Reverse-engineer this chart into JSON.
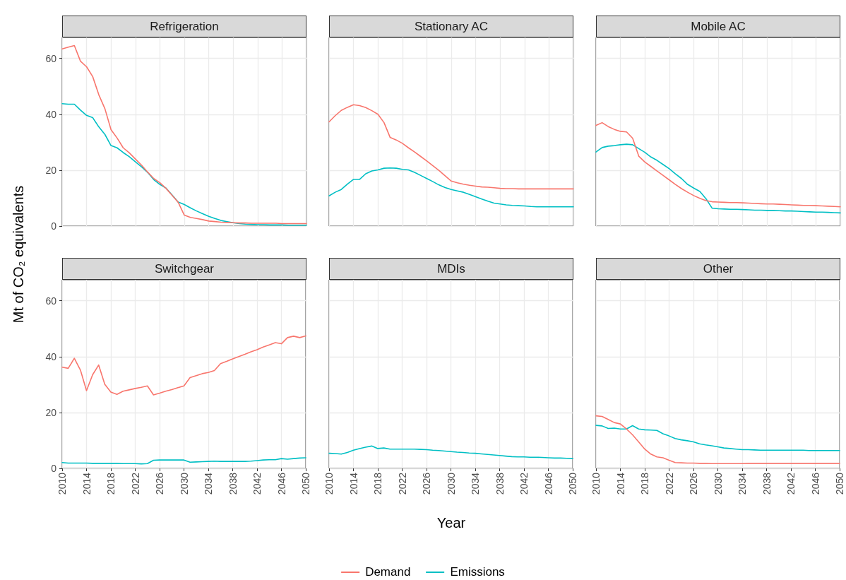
{
  "chart_data": [
    {
      "type": "line",
      "title": "Refrigeration",
      "ylabel": "Mt of CO₂ equivalents",
      "legend": "bottom",
      "grid": true,
      "tick_labels": "y",
      "xlim": [
        2010,
        2050
      ],
      "ylim": [
        0,
        67.5
      ],
      "xticks": [
        2010,
        2014,
        2018,
        2022,
        2026,
        2030,
        2034,
        2038,
        2042,
        2046,
        2050
      ],
      "yticks": [
        0,
        20,
        40,
        60
      ],
      "x": [
        2010,
        2011,
        2012,
        2013,
        2014,
        2015,
        2016,
        2017,
        2018,
        2019,
        2020,
        2021,
        2022,
        2023,
        2024,
        2025,
        2026,
        2027,
        2028,
        2029,
        2030,
        2031,
        2032,
        2033,
        2034,
        2035,
        2036,
        2037,
        2038,
        2039,
        2040,
        2041,
        2042,
        2043,
        2044,
        2045,
        2046,
        2047,
        2048,
        2049,
        2050
      ],
      "series": [
        {
          "name": "Demand",
          "color": "#f8766d",
          "values": [
            63.4,
            64.0,
            64.6,
            59.0,
            57.0,
            53.5,
            47.0,
            42.0,
            34.5,
            31.5,
            28.0,
            26.2,
            24.0,
            21.8,
            19.3,
            17.0,
            15.5,
            13.5,
            11.0,
            8.5,
            3.9,
            3.1,
            2.7,
            2.3,
            1.8,
            1.6,
            1.4,
            1.3,
            1.2,
            1.1,
            1.1,
            1.0,
            1.0,
            1.0,
            1.0,
            1.0,
            0.9,
            0.9,
            0.9,
            0.9,
            0.9
          ]
        },
        {
          "name": "Emissions",
          "color": "#00bfc4",
          "values": [
            43.8,
            43.6,
            43.6,
            41.5,
            39.6,
            38.8,
            35.5,
            32.8,
            28.8,
            28.0,
            26.3,
            24.8,
            23.0,
            21.2,
            19.2,
            16.6,
            14.9,
            13.6,
            11.1,
            8.6,
            7.7,
            6.5,
            5.4,
            4.4,
            3.5,
            2.7,
            2.0,
            1.6,
            1.2,
            0.9,
            0.7,
            0.6,
            0.5,
            0.5,
            0.4,
            0.4,
            0.4,
            0.3,
            0.3,
            0.3,
            0.3
          ]
        }
      ]
    },
    {
      "type": "line",
      "title": "Stationary AC",
      "grid": true,
      "tick_labels": false,
      "xlim": [
        2010,
        2050
      ],
      "ylim": [
        0,
        67.5
      ],
      "xticks": [
        2010,
        2014,
        2018,
        2022,
        2026,
        2030,
        2034,
        2038,
        2042,
        2046,
        2050
      ],
      "yticks": [
        0,
        20,
        40,
        60
      ],
      "x": [
        2010,
        2011,
        2012,
        2013,
        2014,
        2015,
        2016,
        2017,
        2018,
        2019,
        2020,
        2021,
        2022,
        2023,
        2024,
        2025,
        2026,
        2027,
        2028,
        2029,
        2030,
        2031,
        2032,
        2033,
        2034,
        2035,
        2036,
        2037,
        2038,
        2039,
        2040,
        2041,
        2042,
        2043,
        2044,
        2045,
        2046,
        2047,
        2048,
        2049,
        2050
      ],
      "series": [
        {
          "name": "Demand",
          "color": "#f8766d",
          "values": [
            37.3,
            39.5,
            41.4,
            42.5,
            43.4,
            43.1,
            42.4,
            41.3,
            40.0,
            37.0,
            31.7,
            30.8,
            29.6,
            28.0,
            26.5,
            24.9,
            23.3,
            21.6,
            19.9,
            18.0,
            16.1,
            15.5,
            15.0,
            14.6,
            14.3,
            14.0,
            13.9,
            13.7,
            13.5,
            13.4,
            13.4,
            13.3,
            13.3,
            13.3,
            13.3,
            13.3,
            13.3,
            13.3,
            13.3,
            13.3,
            13.3
          ]
        },
        {
          "name": "Emissions",
          "color": "#00bfc4",
          "values": [
            10.8,
            12.1,
            13.1,
            15.0,
            16.7,
            16.7,
            18.7,
            19.7,
            20.1,
            20.7,
            20.8,
            20.7,
            20.3,
            20.1,
            19.2,
            18.1,
            17.0,
            15.9,
            14.7,
            13.8,
            13.1,
            12.6,
            12.1,
            11.3,
            10.5,
            9.7,
            8.9,
            8.2,
            7.9,
            7.6,
            7.4,
            7.3,
            7.2,
            7.0,
            6.9,
            6.9,
            6.9,
            6.9,
            6.9,
            6.9,
            6.9
          ]
        }
      ]
    },
    {
      "type": "line",
      "title": "Mobile AC",
      "grid": true,
      "tick_labels": false,
      "xlim": [
        2010,
        2050
      ],
      "ylim": [
        0,
        67.5
      ],
      "xticks": [
        2010,
        2014,
        2018,
        2022,
        2026,
        2030,
        2034,
        2038,
        2042,
        2046,
        2050
      ],
      "yticks": [
        0,
        20,
        40,
        60
      ],
      "x": [
        2010,
        2011,
        2012,
        2013,
        2014,
        2015,
        2016,
        2017,
        2018,
        2019,
        2020,
        2021,
        2022,
        2023,
        2024,
        2025,
        2026,
        2027,
        2028,
        2029,
        2030,
        2031,
        2032,
        2033,
        2034,
        2035,
        2036,
        2037,
        2038,
        2039,
        2040,
        2041,
        2042,
        2043,
        2044,
        2045,
        2046,
        2047,
        2048,
        2049,
        2050
      ],
      "series": [
        {
          "name": "Demand",
          "color": "#f8766d",
          "values": [
            36.0,
            37.0,
            35.6,
            34.6,
            33.9,
            33.7,
            31.4,
            25.0,
            22.9,
            21.3,
            19.7,
            18.1,
            16.5,
            14.9,
            13.4,
            12.1,
            10.9,
            9.9,
            9.1,
            8.7,
            8.6,
            8.5,
            8.4,
            8.4,
            8.3,
            8.2,
            8.1,
            8.0,
            7.9,
            7.9,
            7.8,
            7.7,
            7.6,
            7.5,
            7.4,
            7.4,
            7.3,
            7.2,
            7.1,
            7.0,
            6.9
          ]
        },
        {
          "name": "Emissions",
          "color": "#00bfc4",
          "values": [
            26.5,
            28.1,
            28.6,
            28.8,
            29.1,
            29.3,
            29.1,
            27.7,
            26.4,
            24.7,
            23.5,
            22.0,
            20.5,
            18.7,
            17.0,
            14.9,
            13.6,
            12.4,
            9.8,
            6.4,
            6.2,
            6.1,
            6.0,
            6.0,
            5.9,
            5.8,
            5.7,
            5.7,
            5.6,
            5.6,
            5.5,
            5.4,
            5.4,
            5.3,
            5.2,
            5.1,
            5.0,
            5.0,
            4.9,
            4.8,
            4.7
          ]
        }
      ]
    },
    {
      "type": "line",
      "title": "Switchgear",
      "grid": true,
      "xlim": [
        2010,
        2050
      ],
      "ylim": [
        0,
        67.5
      ],
      "xticks": [
        2010,
        2014,
        2018,
        2022,
        2026,
        2030,
        2034,
        2038,
        2042,
        2046,
        2050
      ],
      "yticks": [
        0,
        20,
        40,
        60
      ],
      "x": [
        2010,
        2011,
        2012,
        2013,
        2014,
        2015,
        2016,
        2017,
        2018,
        2019,
        2020,
        2021,
        2022,
        2023,
        2024,
        2025,
        2026,
        2027,
        2028,
        2029,
        2030,
        2031,
        2032,
        2033,
        2034,
        2035,
        2036,
        2037,
        2038,
        2039,
        2040,
        2041,
        2042,
        2043,
        2044,
        2045,
        2046,
        2047,
        2048,
        2049,
        2050
      ],
      "series": [
        {
          "name": "Demand",
          "color": "#f8766d",
          "values": [
            36.2,
            35.8,
            39.4,
            35.2,
            27.8,
            33.5,
            37.0,
            30.1,
            27.3,
            26.5,
            27.6,
            28.1,
            28.6,
            29.0,
            29.5,
            26.3,
            26.9,
            27.6,
            28.2,
            28.9,
            29.5,
            32.5,
            33.2,
            33.9,
            34.3,
            35.0,
            37.5,
            38.3,
            39.2,
            40.0,
            40.8,
            41.7,
            42.5,
            43.4,
            44.2,
            45.0,
            44.6,
            46.8,
            47.3,
            46.8,
            47.4
          ]
        },
        {
          "name": "Emissions",
          "color": "#00bfc4",
          "values": [
            2.1,
            1.9,
            1.9,
            1.9,
            1.9,
            1.8,
            1.8,
            1.8,
            1.8,
            1.8,
            1.7,
            1.7,
            1.7,
            1.6,
            1.7,
            2.9,
            3.0,
            3.0,
            3.0,
            3.0,
            3.0,
            2.2,
            2.3,
            2.4,
            2.5,
            2.6,
            2.5,
            2.5,
            2.5,
            2.5,
            2.5,
            2.6,
            2.8,
            3.0,
            3.1,
            3.1,
            3.5,
            3.3,
            3.5,
            3.7,
            3.8
          ]
        }
      ]
    },
    {
      "type": "line",
      "title": "MDIs",
      "xlabel": "Year",
      "grid": true,
      "tick_labels": "x",
      "xlim": [
        2010,
        2050
      ],
      "ylim": [
        0,
        67.5
      ],
      "xticks": [
        2010,
        2014,
        2018,
        2022,
        2026,
        2030,
        2034,
        2038,
        2042,
        2046,
        2050
      ],
      "yticks": [
        0,
        20,
        40,
        60
      ],
      "x": [
        2010,
        2011,
        2012,
        2013,
        2014,
        2015,
        2016,
        2017,
        2018,
        2019,
        2020,
        2021,
        2022,
        2023,
        2024,
        2025,
        2026,
        2027,
        2028,
        2029,
        2030,
        2031,
        2032,
        2033,
        2034,
        2035,
        2036,
        2037,
        2038,
        2039,
        2040,
        2041,
        2042,
        2043,
        2044,
        2045,
        2046,
        2047,
        2048,
        2049,
        2050
      ],
      "series": [
        {
          "name": "Emissions",
          "color": "#00bfc4",
          "values": [
            5.4,
            5.3,
            5.1,
            5.7,
            6.5,
            7.1,
            7.6,
            8.0,
            7.1,
            7.3,
            6.9,
            6.9,
            6.9,
            6.9,
            6.9,
            6.8,
            6.7,
            6.5,
            6.4,
            6.2,
            6.0,
            5.8,
            5.7,
            5.5,
            5.4,
            5.2,
            5.0,
            4.8,
            4.6,
            4.4,
            4.2,
            4.1,
            4.1,
            4.0,
            4.0,
            3.9,
            3.8,
            3.7,
            3.7,
            3.6,
            3.5
          ]
        }
      ]
    },
    {
      "type": "line",
      "title": "Other",
      "grid": true,
      "tick_labels": "x",
      "xlim": [
        2010,
        2050
      ],
      "ylim": [
        0,
        67.5
      ],
      "xticks": [
        2010,
        2014,
        2018,
        2022,
        2026,
        2030,
        2034,
        2038,
        2042,
        2046,
        2050
      ],
      "yticks": [
        0,
        20,
        40,
        60
      ],
      "x": [
        2010,
        2011,
        2012,
        2013,
        2014,
        2015,
        2016,
        2017,
        2018,
        2019,
        2020,
        2021,
        2022,
        2023,
        2024,
        2025,
        2026,
        2027,
        2028,
        2029,
        2030,
        2031,
        2032,
        2033,
        2034,
        2035,
        2036,
        2037,
        2038,
        2039,
        2040,
        2041,
        2042,
        2043,
        2044,
        2045,
        2046,
        2047,
        2048,
        2049,
        2050
      ],
      "series": [
        {
          "name": "Demand",
          "color": "#f8766d",
          "values": [
            18.8,
            18.6,
            17.5,
            16.4,
            15.9,
            14.1,
            12.0,
            9.5,
            6.9,
            5.1,
            4.1,
            3.8,
            2.9,
            2.1,
            2.0,
            1.9,
            1.9,
            1.8,
            1.8,
            1.7,
            1.7,
            1.7,
            1.7,
            1.7,
            1.7,
            1.8,
            1.8,
            1.8,
            1.8,
            1.8,
            1.8,
            1.8,
            1.8,
            1.8,
            1.8,
            1.8,
            1.8,
            1.8,
            1.8,
            1.8,
            1.8
          ]
        },
        {
          "name": "Emissions",
          "color": "#00bfc4",
          "values": [
            15.4,
            15.2,
            14.3,
            14.4,
            14.1,
            14.1,
            15.3,
            14.1,
            13.8,
            13.7,
            13.6,
            12.4,
            11.6,
            10.7,
            10.2,
            9.9,
            9.5,
            8.8,
            8.4,
            8.1,
            7.7,
            7.3,
            7.1,
            6.9,
            6.7,
            6.7,
            6.6,
            6.5,
            6.5,
            6.5,
            6.5,
            6.5,
            6.5,
            6.5,
            6.5,
            6.4,
            6.4,
            6.4,
            6.4,
            6.4,
            6.4
          ]
        }
      ]
    }
  ]
}
